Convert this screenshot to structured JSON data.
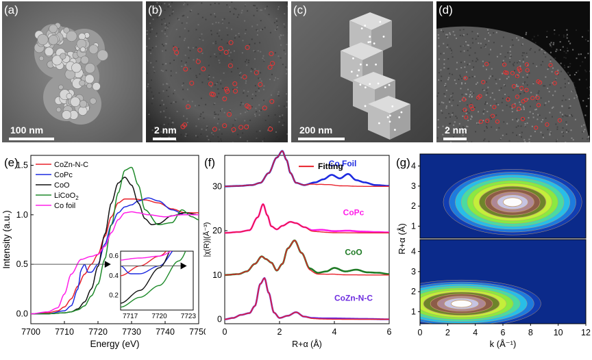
{
  "micrographs": [
    {
      "label": "(a)",
      "scale": "100 nm"
    },
    {
      "label": "(b)",
      "scale": "2 nm"
    },
    {
      "label": "(c)",
      "scale": "200 nm"
    },
    {
      "label": "(d)",
      "scale": "2 nm"
    }
  ],
  "chart_data": [
    {
      "panel": "(e)",
      "type": "line",
      "xlabel": "Energy (eV)",
      "ylabel": "Intensity (a.u.)",
      "xlim": [
        7700,
        7750
      ],
      "ylim": [
        -0.1,
        1.6
      ],
      "xticks": [
        7700,
        7710,
        7720,
        7730,
        7740,
        7750
      ],
      "yticks": [
        0.0,
        0.5,
        1.0,
        1.5
      ],
      "legend": "top-left",
      "series": [
        {
          "name": "CoZn-N-C",
          "color": "#e8202a",
          "x": [
            7700,
            7705,
            7708,
            7710,
            7712,
            7714,
            7716,
            7718,
            7720,
            7722,
            7724,
            7726,
            7728,
            7730,
            7734,
            7738,
            7742,
            7746,
            7750
          ],
          "y": [
            0.0,
            0.01,
            0.03,
            0.07,
            0.15,
            0.28,
            0.4,
            0.5,
            0.6,
            0.78,
            0.98,
            1.12,
            1.16,
            1.16,
            1.15,
            1.12,
            1.06,
            1.02,
            1.02
          ]
        },
        {
          "name": "CoPc",
          "color": "#1d2be0",
          "x": [
            7700,
            7705,
            7710,
            7712,
            7714,
            7715,
            7716,
            7717,
            7718,
            7720,
            7722,
            7724,
            7726,
            7728,
            7730,
            7732,
            7735,
            7738,
            7742,
            7746,
            7750
          ],
          "y": [
            0.0,
            0.0,
            0.03,
            0.08,
            0.25,
            0.45,
            0.5,
            0.42,
            0.42,
            0.5,
            0.7,
            0.9,
            1.02,
            1.08,
            1.1,
            1.14,
            1.17,
            1.14,
            1.05,
            1.0,
            1.0
          ]
        },
        {
          "name": "CoO",
          "color": "#111111",
          "x": [
            7700,
            7705,
            7710,
            7712,
            7714,
            7716,
            7718,
            7720,
            7722,
            7724,
            7726,
            7728,
            7730,
            7732,
            7734,
            7736,
            7738,
            7742,
            7746,
            7750
          ],
          "y": [
            0.0,
            0.0,
            0.01,
            0.02,
            0.05,
            0.12,
            0.25,
            0.48,
            0.8,
            1.12,
            1.32,
            1.38,
            1.3,
            1.12,
            0.96,
            0.9,
            0.91,
            0.99,
            1.02,
            1.0
          ]
        },
        {
          "name": "LiCoO2",
          "color": "#1e8a2a",
          "x": [
            7700,
            7705,
            7710,
            7712,
            7714,
            7716,
            7718,
            7720,
            7722,
            7724,
            7726,
            7728,
            7730,
            7732,
            7734,
            7738,
            7742,
            7745,
            7748,
            7750
          ],
          "y": [
            0.0,
            0.0,
            0.01,
            0.02,
            0.04,
            0.08,
            0.18,
            0.3,
            0.55,
            0.9,
            1.22,
            1.45,
            1.48,
            1.3,
            1.05,
            0.9,
            0.92,
            1.05,
            0.98,
            0.95
          ]
        },
        {
          "name": "Co foil",
          "color": "#ff1ee8",
          "x": [
            7700,
            7705,
            7708,
            7710,
            7712,
            7715,
            7718,
            7720,
            7722,
            7724,
            7726,
            7728,
            7730,
            7732,
            7735,
            7740,
            7745,
            7750
          ],
          "y": [
            0.0,
            0.02,
            0.06,
            0.2,
            0.4,
            0.55,
            0.58,
            0.6,
            0.68,
            0.82,
            0.95,
            1.02,
            1.03,
            1.02,
            1.0,
            0.98,
            1.0,
            1.0
          ]
        }
      ],
      "legend_labels": {
        "subscript_digit": "2"
      },
      "inset": {
        "xlim": [
          7716,
          7723.5
        ],
        "ylim": [
          0.05,
          0.65
        ],
        "xticks": [
          7717,
          7720,
          7723
        ],
        "yticks": [
          0.2,
          0.4,
          0.6
        ]
      }
    },
    {
      "panel": "(f)",
      "type": "line",
      "xlabel": "R+α (Å)",
      "ylabel": "|χ(R)|(Å⁻³)",
      "xlim": [
        0,
        6
      ],
      "ylim": [
        -1,
        37
      ],
      "xticks": [
        0,
        2,
        4,
        6
      ],
      "yticks": [
        0,
        10,
        20,
        30
      ],
      "fit_label": "Fitting",
      "series": [
        {
          "name": "Co Foil",
          "color": "#1d2be0",
          "offset": 30,
          "x": [
            0,
            0.5,
            1,
            1.3,
            1.6,
            1.9,
            2.1,
            2.25,
            2.4,
            2.6,
            2.9,
            3.3,
            3.6,
            3.9,
            4.2,
            4.5,
            4.8,
            5.1,
            5.5,
            6
          ],
          "y": [
            0,
            0.1,
            0.3,
            0.8,
            3.0,
            6.5,
            8.0,
            6.0,
            3.0,
            0.8,
            0.3,
            0.9,
            1.6,
            2.6,
            1.8,
            2.8,
            1.4,
            0.9,
            0.3,
            0.1
          ]
        },
        {
          "name": "CoPc",
          "color": "#ff1ee8",
          "offset": 19.5,
          "x": [
            0,
            0.5,
            0.9,
            1.2,
            1.4,
            1.55,
            1.7,
            1.9,
            2.1,
            2.4,
            2.6,
            2.9,
            3.2,
            3.5,
            4,
            4.5,
            5,
            5.5,
            6
          ],
          "y": [
            0,
            0.2,
            0.6,
            3.5,
            6.5,
            4.0,
            1.5,
            0.8,
            1.6,
            2.5,
            2.2,
            1.3,
            0.6,
            0.7,
            0.4,
            0.5,
            0.3,
            0.2,
            0.1
          ]
        },
        {
          "name": "CoO",
          "color": "#1e7a24",
          "offset": 10,
          "x": [
            0,
            0.5,
            0.8,
            1.1,
            1.35,
            1.5,
            1.7,
            1.9,
            2.1,
            2.3,
            2.55,
            2.8,
            3.1,
            3.4,
            3.7,
            4,
            4.4,
            4.8,
            5.2,
            5.6,
            6
          ],
          "y": [
            0,
            0.2,
            0.8,
            2.5,
            4.2,
            3.6,
            2.8,
            1.0,
            2.5,
            6.0,
            7.8,
            5.0,
            1.5,
            0.5,
            0.8,
            1.6,
            0.8,
            1.2,
            0.6,
            0.5,
            0.2
          ]
        },
        {
          "name": "CoZn-N-C",
          "color": "#6e2de0",
          "offset": 0,
          "x": [
            0,
            0.3,
            0.6,
            0.9,
            1.1,
            1.3,
            1.45,
            1.6,
            1.8,
            2.0,
            2.3,
            2.6,
            2.9,
            3.2,
            3.6,
            4,
            5,
            6
          ],
          "y": [
            0,
            0.3,
            1.0,
            1.4,
            3.0,
            8.0,
            9.3,
            6.0,
            1.5,
            0.3,
            0.8,
            1.6,
            0.6,
            0.3,
            0.2,
            0.2,
            0.1,
            0.0
          ]
        }
      ]
    },
    {
      "panel": "(g)",
      "type": "heatmap",
      "xlabel": "k (Å⁻¹)",
      "ylabel": "R+α (Å)",
      "xlim": [
        0,
        12
      ],
      "ylim": [
        0.4,
        4.6
      ],
      "xticks": [
        0,
        2,
        4,
        6,
        8,
        10,
        12
      ],
      "yticks": [
        1,
        2,
        3,
        4
      ],
      "maps": [
        {
          "position": "top",
          "peaks": [
            {
              "k": 6.7,
              "R": 2.2
            }
          ]
        },
        {
          "position": "bottom",
          "peaks": [
            {
              "k": 3.0,
              "R": 1.4
            }
          ]
        }
      ]
    }
  ]
}
